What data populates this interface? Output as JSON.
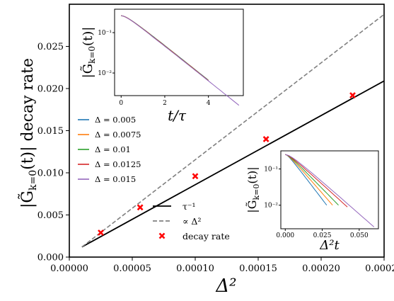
{
  "chart_data": [
    {
      "type": "line",
      "xlabel": "Δ²",
      "ylabel": "|G̃k=0(t)| decay rate",
      "xlim": [
        0,
        0.00025
      ],
      "ylim": [
        0,
        0.03
      ],
      "x_ticks": [
        "0.00000",
        "0.00005",
        "0.00010",
        "0.00015",
        "0.00020",
        "0.00025"
      ],
      "y_ticks": [
        "0.000",
        "0.005",
        "0.010",
        "0.015",
        "0.020",
        "0.025"
      ],
      "grid": false,
      "series": [
        {
          "name": "τ⁻¹",
          "style": "solid",
          "color": "#000000",
          "x": [
            1e-05,
            0.00025
          ],
          "y": [
            0.0012,
            0.0209
          ]
        },
        {
          "name": "∝ Δ²",
          "style": "dashed",
          "color": "#808080",
          "x": [
            1e-05,
            0.00025
          ],
          "y": [
            0.0012,
            0.0288
          ]
        },
        {
          "name": "decay rate",
          "style": "marker-x",
          "color": "#ff0000",
          "x": [
            2.5e-05,
            5.625e-05,
            0.0001,
            0.00015625,
            0.000225
          ],
          "y": [
            0.0029,
            0.0059,
            0.0096,
            0.014,
            0.0192
          ]
        }
      ],
      "legend": {
        "position": "lower-center",
        "entries": [
          "τ⁻¹",
          "∝ Δ²",
          "decay rate"
        ]
      }
    },
    {
      "type": "line",
      "panel": "inset-top-left",
      "xlabel": "t/τ",
      "ylabel": "|G̃k=0(t)|",
      "y_scale": "log",
      "xlim": [
        -0.3,
        5.6
      ],
      "x_ticks": [
        "0",
        "2",
        "4"
      ],
      "y_ticks": [
        "10⁻²",
        "10⁻¹"
      ],
      "series": [
        {
          "name": "Δ = 0.005",
          "color": "#1f77b4",
          "t_end": 4.0
        },
        {
          "name": "Δ = 0.0075",
          "color": "#ff7f0e",
          "t_end": 4.0
        },
        {
          "name": "Δ = 0.01",
          "color": "#2ca02c",
          "t_end": 4.0
        },
        {
          "name": "Δ = 0.0125",
          "color": "#d62728",
          "t_end": 4.0
        },
        {
          "name": "Δ = 0.015",
          "color": "#9467bd",
          "t_end": 5.4
        }
      ],
      "legend": {
        "position": "left",
        "entries": [
          "Δ = 0.005",
          "Δ = 0.0075",
          "Δ = 0.01",
          "Δ = 0.0125",
          "Δ = 0.015"
        ]
      }
    },
    {
      "type": "line",
      "panel": "inset-bottom-right",
      "xlabel": "Δ²t",
      "ylabel": "|G̃k=0(t)|",
      "y_scale": "log",
      "xlim": [
        -0.003,
        0.063
      ],
      "x_ticks": [
        "0.000",
        "0.025",
        "0.050"
      ],
      "y_ticks": [
        "10⁻²",
        "10⁻¹"
      ],
      "series": [
        {
          "name": "Δ = 0.005",
          "color": "#1f77b4",
          "x_end": 0.028
        },
        {
          "name": "Δ = 0.0075",
          "color": "#ff7f0e",
          "x_end": 0.032
        },
        {
          "name": "Δ = 0.01",
          "color": "#2ca02c",
          "x_end": 0.036
        },
        {
          "name": "Δ = 0.0125",
          "color": "#d62728",
          "x_end": 0.042
        },
        {
          "name": "Δ = 0.015",
          "color": "#9467bd",
          "x_end": 0.06
        }
      ]
    }
  ]
}
